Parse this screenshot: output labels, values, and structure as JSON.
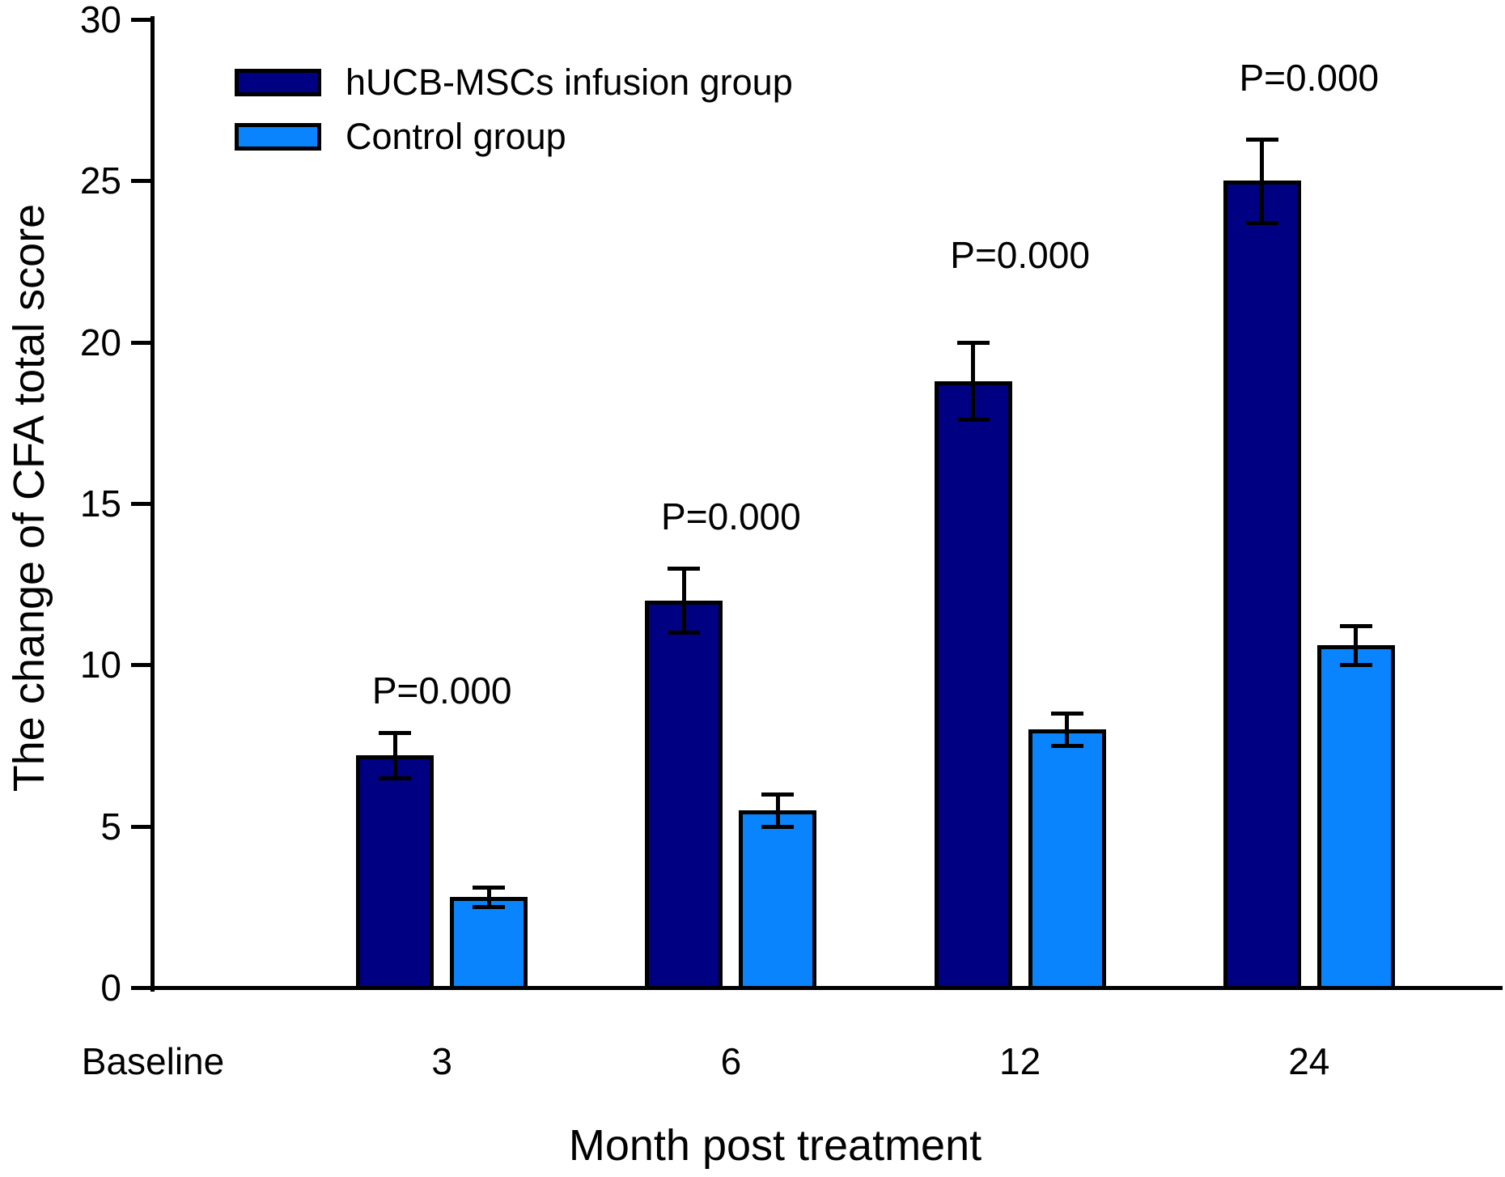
{
  "figure": {
    "background": "#ffffff",
    "axis_color": "#000000"
  },
  "legend": {
    "items": [
      {
        "label": "hUCB-MSCs infusion group",
        "color": "#000082"
      },
      {
        "label": "Control group",
        "color": "#0a84fc"
      }
    ]
  },
  "chart_data": {
    "type": "bar",
    "title": "",
    "xlabel": "Month post treatment",
    "ylabel": "The change of CFA total score",
    "categories": [
      "Baseline",
      "3",
      "6",
      "12",
      "24"
    ],
    "series": [
      {
        "name": "hUCB-MSCs infusion group",
        "color": "#000082",
        "values": [
          null,
          7.2,
          12.0,
          18.8,
          25.0
        ],
        "errors": [
          null,
          0.7,
          1.0,
          1.2,
          1.3
        ]
      },
      {
        "name": "Control group",
        "color": "#0a84fc",
        "values": [
          null,
          2.8,
          5.5,
          8.0,
          10.6
        ],
        "errors": [
          null,
          0.3,
          0.5,
          0.5,
          0.6
        ]
      }
    ],
    "annotations": [
      {
        "text": "P=0.000",
        "category_index": 1,
        "y": 9.2
      },
      {
        "text": "P=0.000",
        "category_index": 2,
        "y": 14.6
      },
      {
        "text": "P=0.000",
        "category_index": 3,
        "y": 22.7
      },
      {
        "text": "P=0.000",
        "category_index": 4,
        "y": 28.2
      }
    ],
    "yticks": [
      0,
      5,
      10,
      15,
      20,
      25,
      30
    ],
    "ylim": [
      0,
      30
    ],
    "grid": false,
    "legend_position": "top-left-inside",
    "bar_edge_color": "#000000",
    "error_bar_color": "#000000"
  }
}
